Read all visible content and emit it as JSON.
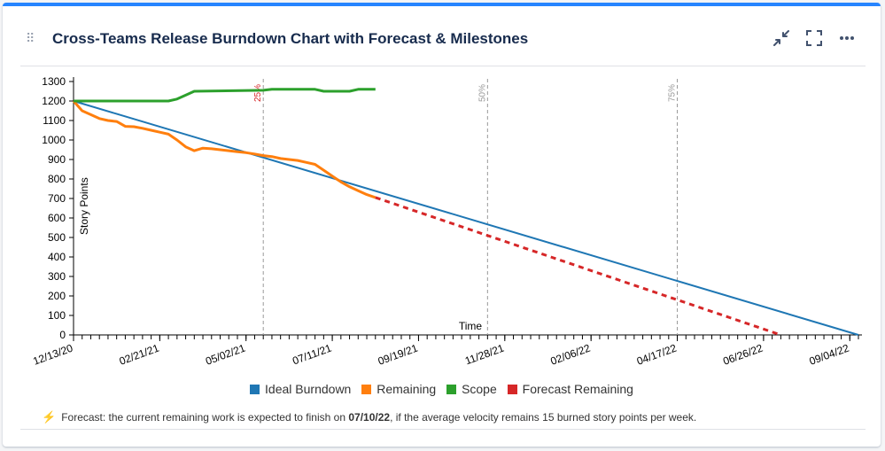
{
  "header": {
    "title": "Cross-Teams Release Burndown Chart with Forecast & Milestones",
    "drag_icon": "drag-handle-icon",
    "minimize_icon": "minimize-icon",
    "fullscreen_icon": "fullscreen-icon",
    "more_icon": "more-options-icon"
  },
  "colors": {
    "ideal": "#1f77b4",
    "remaining": "#ff7f0e",
    "scope": "#2ca02c",
    "forecast": "#d62728",
    "milestone_25": "#d62728",
    "milestone_other": "#999999"
  },
  "chart_data": {
    "type": "line",
    "ylabel": "Story Points",
    "xlabel": "Time",
    "ylim": [
      0,
      1350
    ],
    "yticks": [
      0,
      100,
      200,
      300,
      400,
      500,
      600,
      700,
      800,
      900,
      1000,
      1100,
      1200,
      1300
    ],
    "x_start": "2020-12-13",
    "x_end": "2022-09-11",
    "x_tick_labels": [
      {
        "date": "2020-12-13",
        "label": "12/13/20"
      },
      {
        "date": "2021-02-21",
        "label": "02/21/21"
      },
      {
        "date": "2021-05-02",
        "label": "05/02/21"
      },
      {
        "date": "2021-07-11",
        "label": "07/11/21"
      },
      {
        "date": "2021-09-19",
        "label": "09/19/21"
      },
      {
        "date": "2021-11-28",
        "label": "11/28/21"
      },
      {
        "date": "2022-02-06",
        "label": "02/06/22"
      },
      {
        "date": "2022-04-17",
        "label": "04/17/22"
      },
      {
        "date": "2022-06-26",
        "label": "06/26/22"
      },
      {
        "date": "2022-09-04",
        "label": "09/04/22"
      }
    ],
    "milestones": [
      {
        "label": "25%",
        "date": "2021-05-16"
      },
      {
        "label": "50%",
        "date": "2021-11-14"
      },
      {
        "label": "75%",
        "date": "2022-04-17"
      }
    ],
    "series": [
      {
        "name": "Ideal Burndown",
        "points": [
          [
            "2020-12-13",
            1200
          ],
          [
            "2022-09-11",
            0
          ]
        ]
      },
      {
        "name": "Remaining",
        "points": [
          [
            "2020-12-13",
            1200
          ],
          [
            "2020-12-20",
            1150
          ],
          [
            "2020-12-27",
            1130
          ],
          [
            "2021-01-03",
            1110
          ],
          [
            "2021-01-10",
            1100
          ],
          [
            "2021-01-17",
            1095
          ],
          [
            "2021-01-24",
            1070
          ],
          [
            "2021-01-31",
            1068
          ],
          [
            "2021-02-07",
            1060
          ],
          [
            "2021-02-14",
            1050
          ],
          [
            "2021-02-21",
            1040
          ],
          [
            "2021-02-28",
            1030
          ],
          [
            "2021-03-07",
            1000
          ],
          [
            "2021-03-14",
            965
          ],
          [
            "2021-03-21",
            945
          ],
          [
            "2021-03-28",
            958
          ],
          [
            "2021-04-04",
            955
          ],
          [
            "2021-04-11",
            950
          ],
          [
            "2021-04-18",
            945
          ],
          [
            "2021-04-25",
            940
          ],
          [
            "2021-05-02",
            935
          ],
          [
            "2021-05-09",
            928
          ],
          [
            "2021-05-16",
            920
          ],
          [
            "2021-05-23",
            915
          ],
          [
            "2021-05-30",
            905
          ],
          [
            "2021-06-06",
            900
          ],
          [
            "2021-06-13",
            895
          ],
          [
            "2021-06-20",
            885
          ],
          [
            "2021-06-27",
            875
          ],
          [
            "2021-07-04",
            845
          ],
          [
            "2021-07-11",
            815
          ],
          [
            "2021-07-18",
            785
          ],
          [
            "2021-07-25",
            760
          ],
          [
            "2021-08-01",
            740
          ],
          [
            "2021-08-08",
            720
          ],
          [
            "2021-08-15",
            705
          ]
        ]
      },
      {
        "name": "Scope",
        "points": [
          [
            "2020-12-13",
            1200
          ],
          [
            "2021-02-28",
            1200
          ],
          [
            "2021-03-07",
            1210
          ],
          [
            "2021-03-14",
            1230
          ],
          [
            "2021-03-21",
            1250
          ],
          [
            "2021-05-16",
            1255
          ],
          [
            "2021-05-23",
            1260
          ],
          [
            "2021-06-27",
            1260
          ],
          [
            "2021-07-04",
            1250
          ],
          [
            "2021-07-25",
            1250
          ],
          [
            "2021-08-01",
            1260
          ],
          [
            "2021-08-15",
            1260
          ]
        ]
      },
      {
        "name": "Forecast Remaining",
        "points": [
          [
            "2021-08-15",
            705
          ],
          [
            "2022-07-10",
            0
          ]
        ]
      }
    ]
  },
  "legend": [
    {
      "label": "Ideal Burndown",
      "color": "#1f77b4"
    },
    {
      "label": "Remaining",
      "color": "#ff7f0e"
    },
    {
      "label": "Scope",
      "color": "#2ca02c"
    },
    {
      "label": "Forecast Remaining",
      "color": "#d62728"
    }
  ],
  "footer": {
    "icon": "lightning-icon",
    "text_before": "Forecast: the current remaining work is expected to finish on ",
    "date": "07/10/22",
    "text_after": ", if the average velocity remains 15 burned story points per week."
  }
}
